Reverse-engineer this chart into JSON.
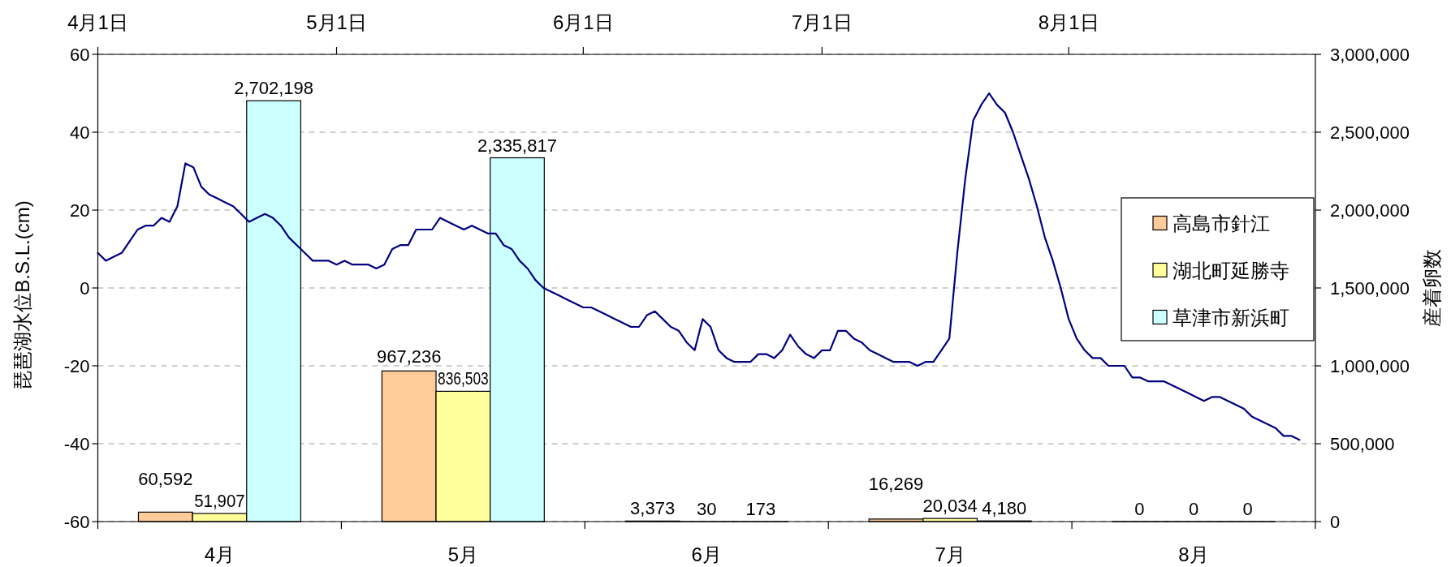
{
  "chart_data": {
    "type": "bar",
    "categories": [
      "4月",
      "5月",
      "6月",
      "7月",
      "8月"
    ],
    "ylabel": "琵琶湖水位B.S.L.(cm)",
    "y2label": "産着卵数",
    "ylim": [
      -60,
      60
    ],
    "yticks": [
      -60,
      -40,
      -20,
      0,
      20,
      40,
      60
    ],
    "y2lim": [
      0,
      3000000
    ],
    "y2ticks": [
      0,
      {
        "value": 500000,
        "label": "500,000"
      },
      {
        "value": 1000000,
        "label": "1,000,000"
      },
      {
        "value": 1500000,
        "label": "1,500,000"
      },
      {
        "value": 2000000,
        "label": "2,000,000"
      },
      {
        "value": 2500000,
        "label": "2,500,000"
      },
      {
        "value": 3000000,
        "label": "3,000,000"
      }
    ],
    "x2lim": [
      "--04-01",
      "--09-01"
    ],
    "x2ticks": [
      {
        "value": "--04-01",
        "label": "4月1日"
      },
      {
        "value": "--05-01",
        "label": "5月1日"
      },
      {
        "value": "--06-01",
        "label": "6月1日"
      },
      {
        "value": "--07-01",
        "label": "7月1日"
      },
      {
        "value": "--08-01",
        "label": "8月1日"
      }
    ],
    "grid": "y",
    "legend": "right",
    "series": [
      {
        "name": "高島市針江",
        "axis": "y2",
        "color": "#ffcc99",
        "values": [
          60592,
          967236,
          3373,
          16269,
          0
        ],
        "value_labels": [
          "60,592",
          "967,236",
          "3,373",
          "16,269",
          "0"
        ]
      },
      {
        "name": "湖北町延勝寺",
        "axis": "y2",
        "color": "#ffff99",
        "values": [
          51907,
          836503,
          30,
          20034,
          0
        ],
        "value_labels": [
          "51,907",
          "836,503",
          "30",
          "20,034",
          "0"
        ]
      },
      {
        "name": "草津市新浜町",
        "axis": "y2",
        "color": "#ccffff",
        "values": [
          2702198,
          2335817,
          173,
          4180,
          0
        ],
        "value_labels": [
          "2,702,198",
          "2,335,817",
          "173",
          "4,180",
          "0"
        ]
      },
      {
        "type": "line",
        "axis": "x2",
        "color": "#000080",
        "x": [
          "--04-01",
          "--04-02",
          "--04-03",
          "--04-04",
          "--04-05",
          "--04-06",
          "--04-07",
          "--04-08",
          "--04-09",
          "--04-10",
          "--04-11",
          "--04-12",
          "--04-13",
          "--04-14",
          "--04-15",
          "--04-16",
          "--04-17",
          "--04-18",
          "--04-19",
          "--04-20",
          "--04-21",
          "--04-22",
          "--04-23",
          "--04-24",
          "--04-25",
          "--04-26",
          "--04-27",
          "--04-28",
          "--04-29",
          "--04-30",
          "--05-01",
          "--05-02",
          "--05-03",
          "--05-04",
          "--05-05",
          "--05-06",
          "--05-07",
          "--05-08",
          "--05-09",
          "--05-10",
          "--05-11",
          "--05-12",
          "--05-13",
          "--05-14",
          "--05-15",
          "--05-16",
          "--05-17",
          "--05-18",
          "--05-19",
          "--05-20",
          "--05-21",
          "--05-22",
          "--05-23",
          "--05-24",
          "--05-25",
          "--05-26",
          "--05-27",
          "--05-28",
          "--05-29",
          "--05-30",
          "--05-31",
          "--06-01",
          "--06-02",
          "--06-03",
          "--06-04",
          "--06-05",
          "--06-06",
          "--06-07",
          "--06-08",
          "--06-09",
          "--06-10",
          "--06-11",
          "--06-12",
          "--06-13",
          "--06-14",
          "--06-15",
          "--06-16",
          "--06-17",
          "--06-18",
          "--06-19",
          "--06-20",
          "--06-22",
          "--06-23",
          "--06-24",
          "--06-25",
          "--06-26",
          "--06-27",
          "--06-28",
          "--06-29",
          "--06-30",
          "--07-01",
          "--07-02",
          "--07-03",
          "--07-04",
          "--07-05",
          "--07-06",
          "--07-07",
          "--07-08",
          "--07-09",
          "--07-10",
          "--07-12",
          "--07-13",
          "--07-14",
          "--07-15",
          "--07-16",
          "--07-17",
          "--07-18",
          "--07-19",
          "--07-20",
          "--07-21",
          "--07-22",
          "--07-23",
          "--07-24",
          "--07-25",
          "--07-26",
          "--07-27",
          "--07-28",
          "--07-29",
          "--07-30",
          "--07-31",
          "--08-01",
          "--08-02",
          "--08-03",
          "--08-04",
          "--08-05",
          "--08-06",
          "--08-08",
          "--08-09",
          "--08-10",
          "--08-11",
          "--08-13",
          "--08-14",
          "--08-15",
          "--08-16",
          "--08-17",
          "--08-18",
          "--08-19",
          "--08-20",
          "--08-21",
          "--08-22",
          "--08-23",
          "--08-24",
          "--08-25",
          "--08-26",
          "--08-27",
          "--08-28",
          "--08-29",
          "--08-30"
        ],
        "values": [
          9,
          7,
          8,
          9,
          12,
          15,
          16,
          16,
          18,
          17,
          21,
          32,
          31,
          26,
          24,
          23,
          22,
          21,
          19,
          17,
          18,
          19,
          18,
          16,
          13,
          11,
          9,
          7,
          7,
          7,
          6,
          7,
          6,
          6,
          6,
          5,
          6,
          10,
          11,
          11,
          15,
          15,
          15,
          18,
          17,
          16,
          15,
          16,
          15,
          14,
          14,
          11,
          10,
          7,
          5,
          2,
          0,
          -1,
          -2,
          -3,
          -4,
          -5,
          -5,
          -6,
          -7,
          -8,
          -9,
          -10,
          -10,
          -7,
          -6,
          -8,
          -10,
          -11,
          -14,
          -16,
          -8,
          -10,
          -16,
          -18,
          -19,
          -19,
          -17,
          -17,
          -18,
          -16,
          -12,
          -15,
          -17,
          -18,
          -16,
          -16,
          -11,
          -11,
          -13,
          -14,
          -16,
          -17,
          -18,
          -19,
          -19,
          -20,
          -19,
          -19,
          -16,
          -13,
          9,
          28,
          43,
          47,
          50,
          47,
          45,
          40,
          34,
          28,
          21,
          13,
          7,
          0,
          -8,
          -13,
          -16,
          -18,
          -18,
          -20,
          -20,
          -23,
          -23,
          -24,
          -24,
          -25,
          -26,
          -27,
          -28,
          -29,
          -28,
          -28,
          -29,
          -30,
          -31,
          -33,
          -34,
          -35,
          -36,
          -38,
          -38,
          -39
        ]
      }
    ]
  }
}
